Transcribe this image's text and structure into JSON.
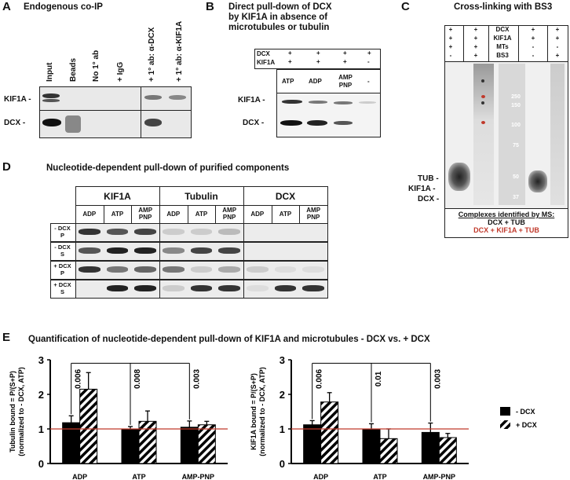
{
  "panelA": {
    "letter": "A",
    "title": "Endogenous co-IP",
    "lanes": [
      "Input",
      "Beads",
      "No 1° ab",
      "+ IgG",
      "+ 1° ab: α-DCX",
      "+ 1° ab: α-KIF1A"
    ],
    "rows": [
      "KIF1A -",
      "DCX -"
    ]
  },
  "panelB": {
    "letter": "B",
    "title_lines": [
      "Direct pull-down of DCX",
      "by KIF1A in absence of",
      "microtubules or tubulin"
    ],
    "header_rows": [
      {
        "label": "DCX",
        "values": [
          "+",
          "+",
          "+",
          "+"
        ]
      },
      {
        "label": "KIF1A",
        "values": [
          "+",
          "+",
          "+",
          "-"
        ]
      }
    ],
    "lanes": [
      "ATP",
      "ADP",
      "AMP PNP",
      "-"
    ],
    "rows": [
      "KIF1A -",
      "DCX -"
    ]
  },
  "panelC": {
    "letter": "C",
    "title": "Cross-linking with BS3",
    "header_rows": [
      {
        "cells": [
          "+",
          "+",
          "DCX",
          "+",
          "+"
        ]
      },
      {
        "cells": [
          "+",
          "+",
          "KIF1A",
          "+",
          "+"
        ]
      },
      {
        "cells": [
          "+",
          "+",
          "MTs",
          "-",
          "-"
        ]
      },
      {
        "cells": [
          "-",
          "+",
          "BS3",
          "-",
          "+"
        ]
      }
    ],
    "ladder": [
      "250",
      "150",
      "100",
      "75",
      "50",
      "37"
    ],
    "side_labels": [
      "TUB -",
      "KIF1A -",
      "DCX -"
    ],
    "ms_title": "Complexes identified by MS:",
    "ms_lines": [
      {
        "text": "DCX + TUB",
        "color": "#111111"
      },
      {
        "text": "DCX + KIF1A + TUB",
        "color": "#c0392b"
      }
    ]
  },
  "panelD": {
    "letter": "D",
    "title": "Nucleotide-dependent pull-down of purified components",
    "groups": [
      "KIF1A",
      "Tubulin",
      "DCX"
    ],
    "lanes": [
      "ADP",
      "ATP",
      "AMP PNP"
    ],
    "rows": [
      "- DCX P",
      "- DCX S",
      "+ DCX P",
      "+ DCX S"
    ]
  },
  "panelE": {
    "letter": "E",
    "title": "Quantification of nucleotide-dependent pull-down of KIF1A and microtubules - DCX vs. + DCX",
    "legend": [
      "- DCX",
      "+ DCX"
    ],
    "reference_color": "#c0392b"
  },
  "chart_data": [
    {
      "type": "bar",
      "ylabel": "Tubulin bound = P/(S+P) (normalized to - DCX, ATP)",
      "categories": [
        "ADP",
        "ATP",
        "AMP-PNP"
      ],
      "ylim": [
        0,
        3
      ],
      "yticks": [
        0,
        1,
        2,
        3
      ],
      "series": [
        {
          "name": "- DCX",
          "values": [
            1.18,
            1.0,
            1.05
          ],
          "errors": [
            0.2,
            0.07,
            0.18
          ]
        },
        {
          "name": "+ DCX",
          "values": [
            2.15,
            1.22,
            1.12
          ],
          "errors": [
            0.48,
            0.3,
            0.1
          ]
        }
      ],
      "pvalues": [
        "0.006",
        "0.008",
        "0.003"
      ],
      "reference_line": 1
    },
    {
      "type": "bar",
      "ylabel": "KIF1A bound = P/(S+P) (normalized to - DCX, ATP)",
      "categories": [
        "ADP",
        "ATP",
        "AMP-PNP"
      ],
      "ylim": [
        0,
        3
      ],
      "yticks": [
        0,
        1,
        2,
        3
      ],
      "series": [
        {
          "name": "- DCX",
          "values": [
            1.12,
            0.98,
            0.9
          ],
          "errors": [
            0.12,
            0.17,
            0.27
          ]
        },
        {
          "name": "+ DCX",
          "values": [
            1.78,
            0.72,
            0.75
          ],
          "errors": [
            0.27,
            0.28,
            0.12
          ]
        }
      ],
      "pvalues": [
        "0.006",
        "0.01",
        "0.003"
      ],
      "reference_line": 1
    }
  ]
}
